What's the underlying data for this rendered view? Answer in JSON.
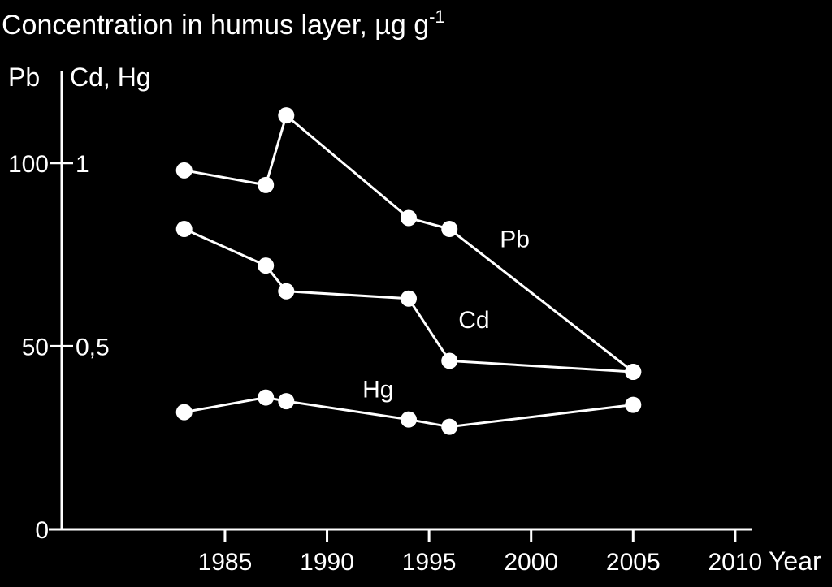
{
  "chart_data": {
    "type": "line",
    "title": "Concentration in humus layer, µg g",
    "title_superscript": "-1",
    "y_left_label": "Pb",
    "y_right_label": "Cd, Hg",
    "xlabel": "Year",
    "xlim": [
      1977,
      2011
    ],
    "ylim_pb": [
      0,
      125
    ],
    "ylim_cd_hg": [
      0,
      1.25
    ],
    "x_ticks": [
      "1985",
      "1990",
      "1995",
      "2000",
      "2005",
      "2010"
    ],
    "y_ticks_pb": [
      "0",
      "50",
      "100"
    ],
    "y_ticks_cd_hg": [
      "0,5",
      "1"
    ],
    "grid": false,
    "legend": "inline",
    "background": "#000000",
    "foreground": "#ffffff",
    "series": [
      {
        "name": "Pb",
        "axis": "pb",
        "x": [
          1983,
          1987,
          1988,
          1994,
          1996,
          2005
        ],
        "values": [
          98,
          94,
          113,
          85,
          82,
          43
        ]
      },
      {
        "name": "Cd",
        "axis": "cd_hg",
        "x": [
          1983,
          1987,
          1988,
          1994,
          1996,
          2005
        ],
        "values": [
          0.82,
          0.72,
          0.65,
          0.63,
          0.46,
          0.43
        ]
      },
      {
        "name": "Hg",
        "axis": "cd_hg",
        "x": [
          1983,
          1987,
          1988,
          1994,
          1996,
          2005
        ],
        "values": [
          0.32,
          0.36,
          0.35,
          0.3,
          0.28,
          0.34
        ]
      }
    ]
  }
}
